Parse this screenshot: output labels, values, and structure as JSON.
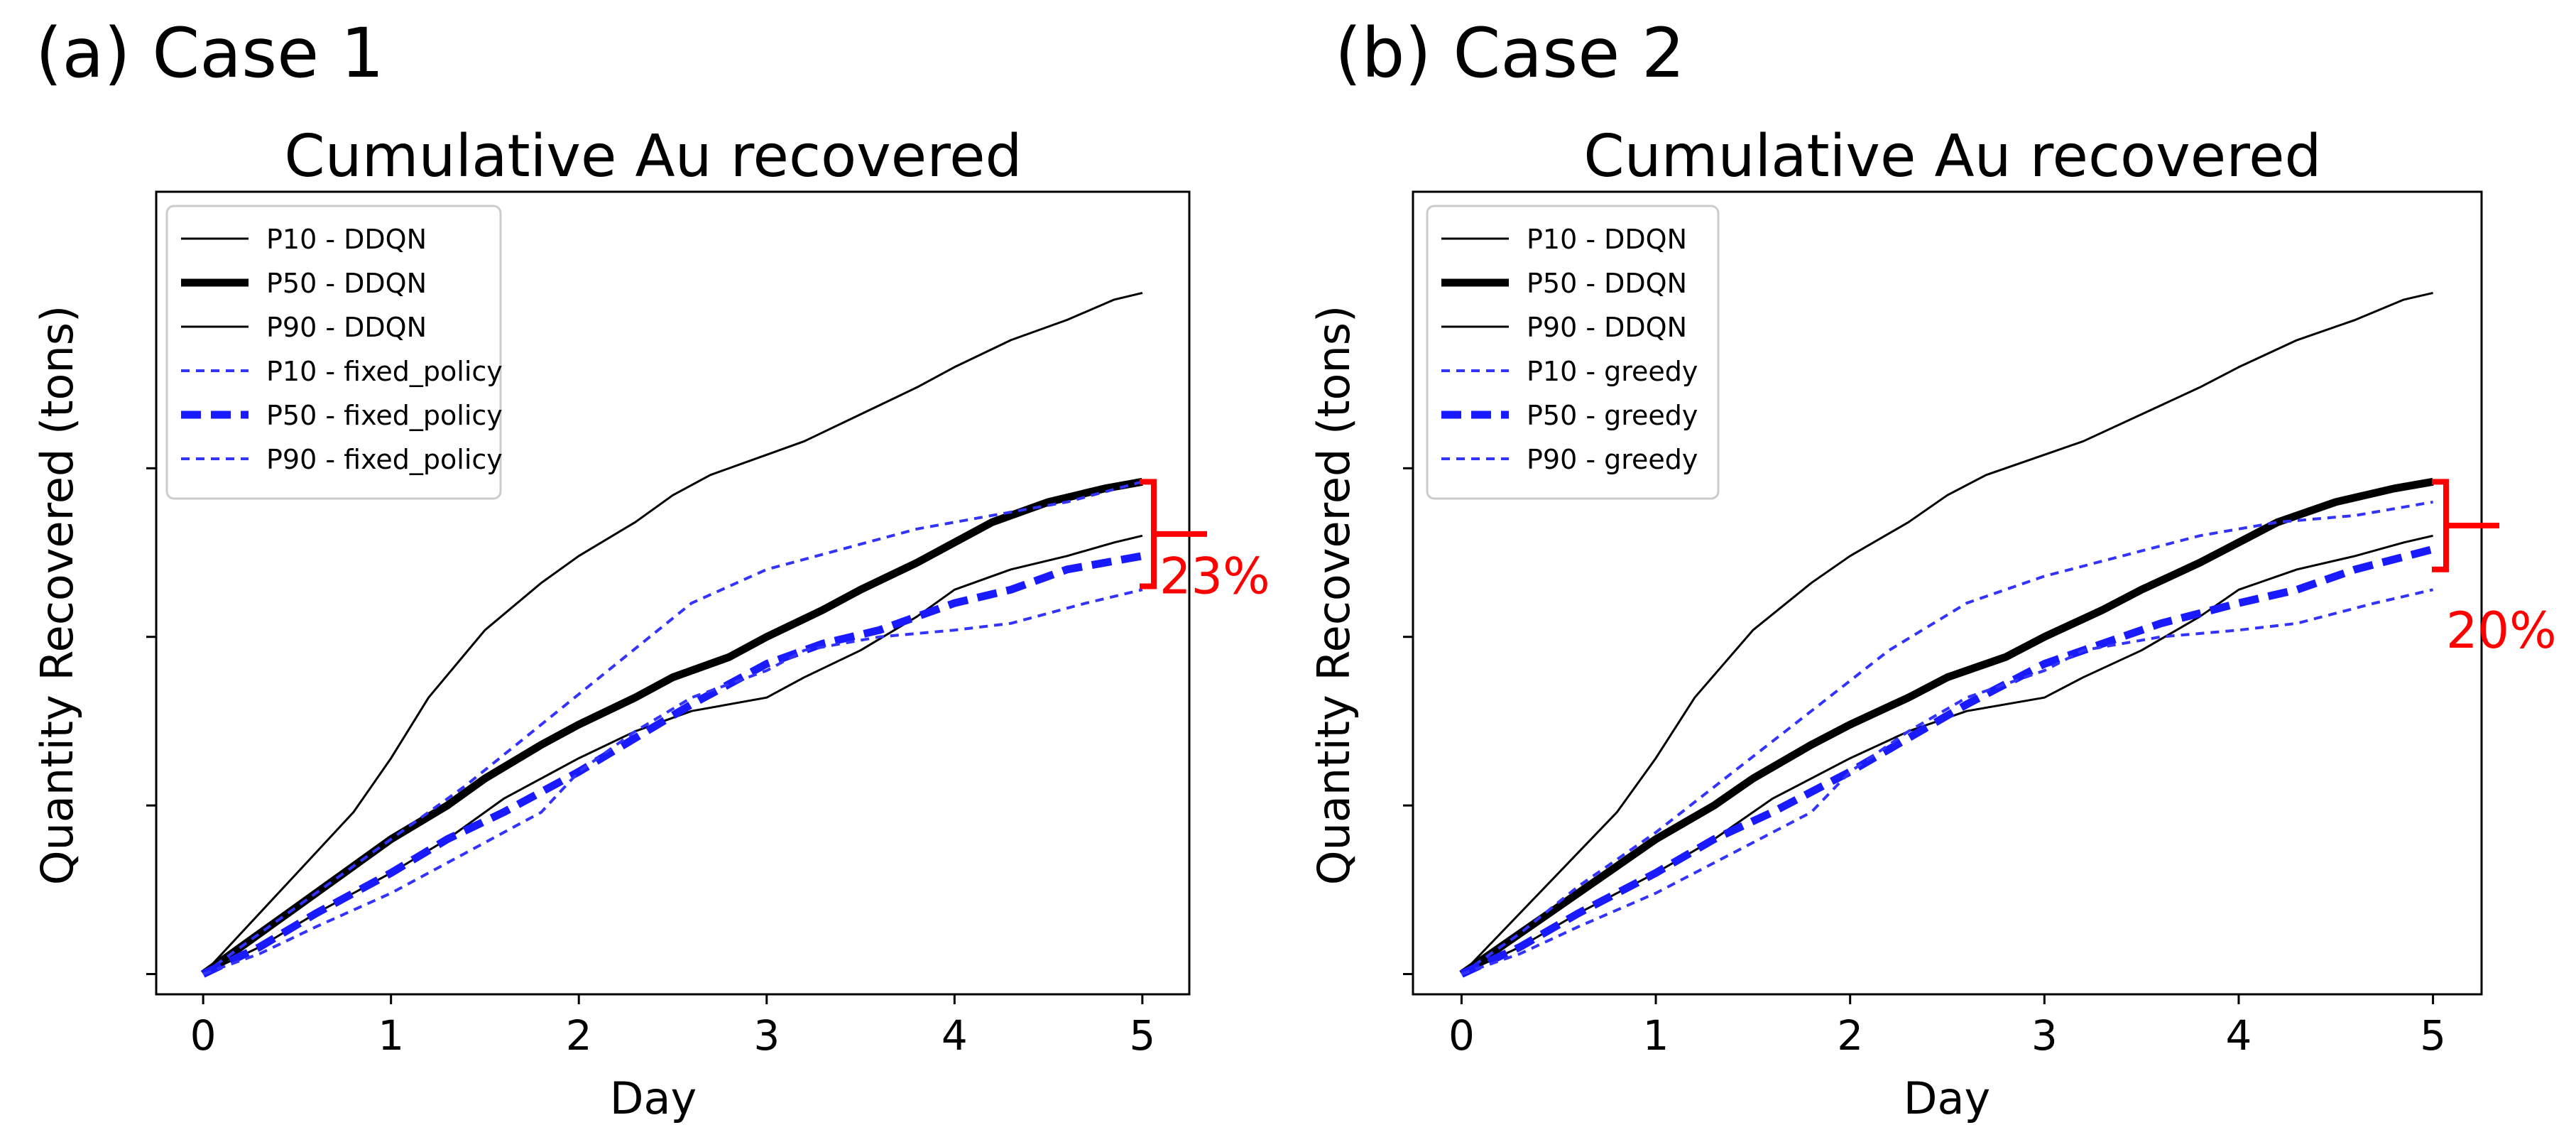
{
  "chart_data": [
    {
      "type": "line",
      "panel_label": "(a) Case 1",
      "title": "Cumulative Au recovered",
      "xlabel": "Day",
      "ylabel": "Quantity Recovered (tons)",
      "xlim": [
        -0.25,
        5.25
      ],
      "ylim": [
        -0.03,
        1.16
      ],
      "xticks": [
        0,
        1,
        2,
        3,
        4,
        5
      ],
      "xtick_labels": [
        "0",
        "1",
        "2",
        "3",
        "4",
        "5"
      ],
      "yticks": [
        0,
        0.25,
        0.5,
        0.75
      ],
      "ytick_labels_visible": false,
      "grid": false,
      "legend_position": "upper-left",
      "series": [
        {
          "name": "P10 - DDQN",
          "color": "#000000",
          "style": "solid-thin",
          "x": [
            0,
            0.2,
            0.5,
            0.8,
            1.0,
            1.2,
            1.5,
            1.8,
            2.0,
            2.3,
            2.5,
            2.7,
            3.0,
            3.2,
            3.5,
            3.8,
            4.0,
            4.3,
            4.6,
            4.85,
            5.0
          ],
          "y": [
            0,
            0.06,
            0.15,
            0.24,
            0.32,
            0.41,
            0.51,
            0.58,
            0.62,
            0.67,
            0.71,
            0.74,
            0.77,
            0.79,
            0.83,
            0.87,
            0.9,
            0.94,
            0.97,
            1.0,
            1.01
          ]
        },
        {
          "name": "P50 - DDQN",
          "color": "#000000",
          "style": "solid-thick",
          "x": [
            0,
            0.2,
            0.5,
            0.8,
            1.0,
            1.3,
            1.5,
            1.8,
            2.0,
            2.3,
            2.5,
            2.8,
            3.0,
            3.3,
            3.5,
            3.8,
            4.0,
            4.2,
            4.5,
            4.8,
            5.0
          ],
          "y": [
            0,
            0.04,
            0.1,
            0.16,
            0.2,
            0.25,
            0.29,
            0.34,
            0.37,
            0.41,
            0.44,
            0.47,
            0.5,
            0.54,
            0.57,
            0.61,
            0.64,
            0.67,
            0.7,
            0.72,
            0.73
          ]
        },
        {
          "name": "P90 - DDQN",
          "color": "#000000",
          "style": "solid-thin",
          "x": [
            0,
            0.3,
            0.6,
            1.0,
            1.3,
            1.6,
            2.0,
            2.3,
            2.6,
            3.0,
            3.2,
            3.5,
            3.8,
            4.0,
            4.3,
            4.6,
            4.85,
            5.0
          ],
          "y": [
            0,
            0.04,
            0.09,
            0.15,
            0.2,
            0.26,
            0.32,
            0.36,
            0.39,
            0.41,
            0.44,
            0.48,
            0.53,
            0.57,
            0.6,
            0.62,
            0.64,
            0.65
          ]
        },
        {
          "name": "P10 - fixed_policy",
          "color": "#3333ff",
          "style": "dashed-thin",
          "x": [
            0,
            0.3,
            0.6,
            1.0,
            1.4,
            1.8,
            2.2,
            2.6,
            3.0,
            3.4,
            3.8,
            4.2,
            4.6,
            5.0
          ],
          "y": [
            0,
            0.06,
            0.12,
            0.2,
            0.28,
            0.37,
            0.46,
            0.55,
            0.6,
            0.63,
            0.66,
            0.68,
            0.7,
            0.73
          ]
        },
        {
          "name": "P50 - fixed_policy",
          "color": "#1a1aff",
          "style": "dashed-thick",
          "x": [
            0,
            0.3,
            0.6,
            1.0,
            1.3,
            1.6,
            2.0,
            2.3,
            2.6,
            3.0,
            3.3,
            3.6,
            4.0,
            4.3,
            4.6,
            5.0
          ],
          "y": [
            0,
            0.04,
            0.09,
            0.15,
            0.2,
            0.24,
            0.3,
            0.35,
            0.4,
            0.46,
            0.49,
            0.51,
            0.55,
            0.57,
            0.6,
            0.62
          ]
        },
        {
          "name": "P90 - fixed_policy",
          "color": "#3333ff",
          "style": "dashed-thin",
          "x": [
            0,
            0.3,
            0.6,
            1.0,
            1.4,
            1.8,
            2.0,
            2.3,
            2.6,
            3.0,
            3.2,
            3.6,
            4.0,
            4.3,
            4.7,
            5.0
          ],
          "y": [
            0,
            0.03,
            0.07,
            0.12,
            0.18,
            0.24,
            0.3,
            0.36,
            0.41,
            0.45,
            0.48,
            0.5,
            0.51,
            0.52,
            0.55,
            0.57
          ]
        }
      ],
      "annotation": {
        "text": "23%",
        "color": "#ff0000",
        "y_top": 0.73,
        "y_bottom": 0.575
      }
    },
    {
      "type": "line",
      "panel_label": "(b) Case 2",
      "title": "Cumulative Au recovered",
      "xlabel": "Day",
      "ylabel": "Quantity Recovered (tons)",
      "xlim": [
        -0.25,
        5.25
      ],
      "ylim": [
        -0.03,
        1.16
      ],
      "xticks": [
        0,
        1,
        2,
        3,
        4,
        5
      ],
      "xtick_labels": [
        "0",
        "1",
        "2",
        "3",
        "4",
        "5"
      ],
      "yticks": [
        0,
        0.25,
        0.5,
        0.75
      ],
      "ytick_labels_visible": false,
      "grid": false,
      "legend_position": "upper-left",
      "series": [
        {
          "name": "P10 - DDQN",
          "color": "#000000",
          "style": "solid-thin",
          "x": [
            0,
            0.2,
            0.5,
            0.8,
            1.0,
            1.2,
            1.5,
            1.8,
            2.0,
            2.3,
            2.5,
            2.7,
            3.0,
            3.2,
            3.5,
            3.8,
            4.0,
            4.3,
            4.6,
            4.85,
            5.0
          ],
          "y": [
            0,
            0.06,
            0.15,
            0.24,
            0.32,
            0.41,
            0.51,
            0.58,
            0.62,
            0.67,
            0.71,
            0.74,
            0.77,
            0.79,
            0.83,
            0.87,
            0.9,
            0.94,
            0.97,
            1.0,
            1.01
          ]
        },
        {
          "name": "P50 - DDQN",
          "color": "#000000",
          "style": "solid-thick",
          "x": [
            0,
            0.2,
            0.5,
            0.8,
            1.0,
            1.3,
            1.5,
            1.8,
            2.0,
            2.3,
            2.5,
            2.8,
            3.0,
            3.3,
            3.5,
            3.8,
            4.0,
            4.2,
            4.5,
            4.8,
            5.0
          ],
          "y": [
            0,
            0.04,
            0.1,
            0.16,
            0.2,
            0.25,
            0.29,
            0.34,
            0.37,
            0.41,
            0.44,
            0.47,
            0.5,
            0.54,
            0.57,
            0.61,
            0.64,
            0.67,
            0.7,
            0.72,
            0.73
          ]
        },
        {
          "name": "P90 - DDQN",
          "color": "#000000",
          "style": "solid-thin",
          "x": [
            0,
            0.3,
            0.6,
            1.0,
            1.3,
            1.6,
            2.0,
            2.3,
            2.6,
            3.0,
            3.2,
            3.5,
            3.8,
            4.0,
            4.3,
            4.6,
            4.85,
            5.0
          ],
          "y": [
            0,
            0.04,
            0.09,
            0.15,
            0.2,
            0.26,
            0.32,
            0.36,
            0.39,
            0.41,
            0.44,
            0.48,
            0.53,
            0.57,
            0.6,
            0.62,
            0.64,
            0.65
          ]
        },
        {
          "name": "P10 - greedy",
          "color": "#3333ff",
          "style": "dashed-thin",
          "x": [
            0,
            0.3,
            0.6,
            1.0,
            1.4,
            1.8,
            2.2,
            2.6,
            3.0,
            3.4,
            3.8,
            4.2,
            4.6,
            5.0
          ],
          "y": [
            0,
            0.06,
            0.13,
            0.21,
            0.3,
            0.39,
            0.48,
            0.55,
            0.59,
            0.62,
            0.65,
            0.67,
            0.68,
            0.7
          ]
        },
        {
          "name": "P50 - greedy",
          "color": "#1a1aff",
          "style": "dashed-thick",
          "x": [
            0,
            0.3,
            0.6,
            1.0,
            1.3,
            1.6,
            2.0,
            2.3,
            2.6,
            3.0,
            3.3,
            3.6,
            4.0,
            4.3,
            4.6,
            5.0
          ],
          "y": [
            0,
            0.04,
            0.09,
            0.15,
            0.2,
            0.24,
            0.3,
            0.35,
            0.4,
            0.46,
            0.49,
            0.52,
            0.55,
            0.57,
            0.6,
            0.63
          ]
        },
        {
          "name": "P90 - greedy",
          "color": "#3333ff",
          "style": "dashed-thin",
          "x": [
            0,
            0.3,
            0.6,
            1.0,
            1.4,
            1.8,
            2.0,
            2.3,
            2.6,
            3.0,
            3.2,
            3.6,
            4.0,
            4.3,
            4.7,
            5.0
          ],
          "y": [
            0,
            0.03,
            0.07,
            0.12,
            0.18,
            0.24,
            0.3,
            0.36,
            0.41,
            0.45,
            0.48,
            0.5,
            0.51,
            0.52,
            0.55,
            0.57
          ]
        }
      ],
      "annotation": {
        "text": "20%",
        "color": "#ff0000",
        "y_top": 0.73,
        "y_bottom": 0.6
      }
    }
  ]
}
